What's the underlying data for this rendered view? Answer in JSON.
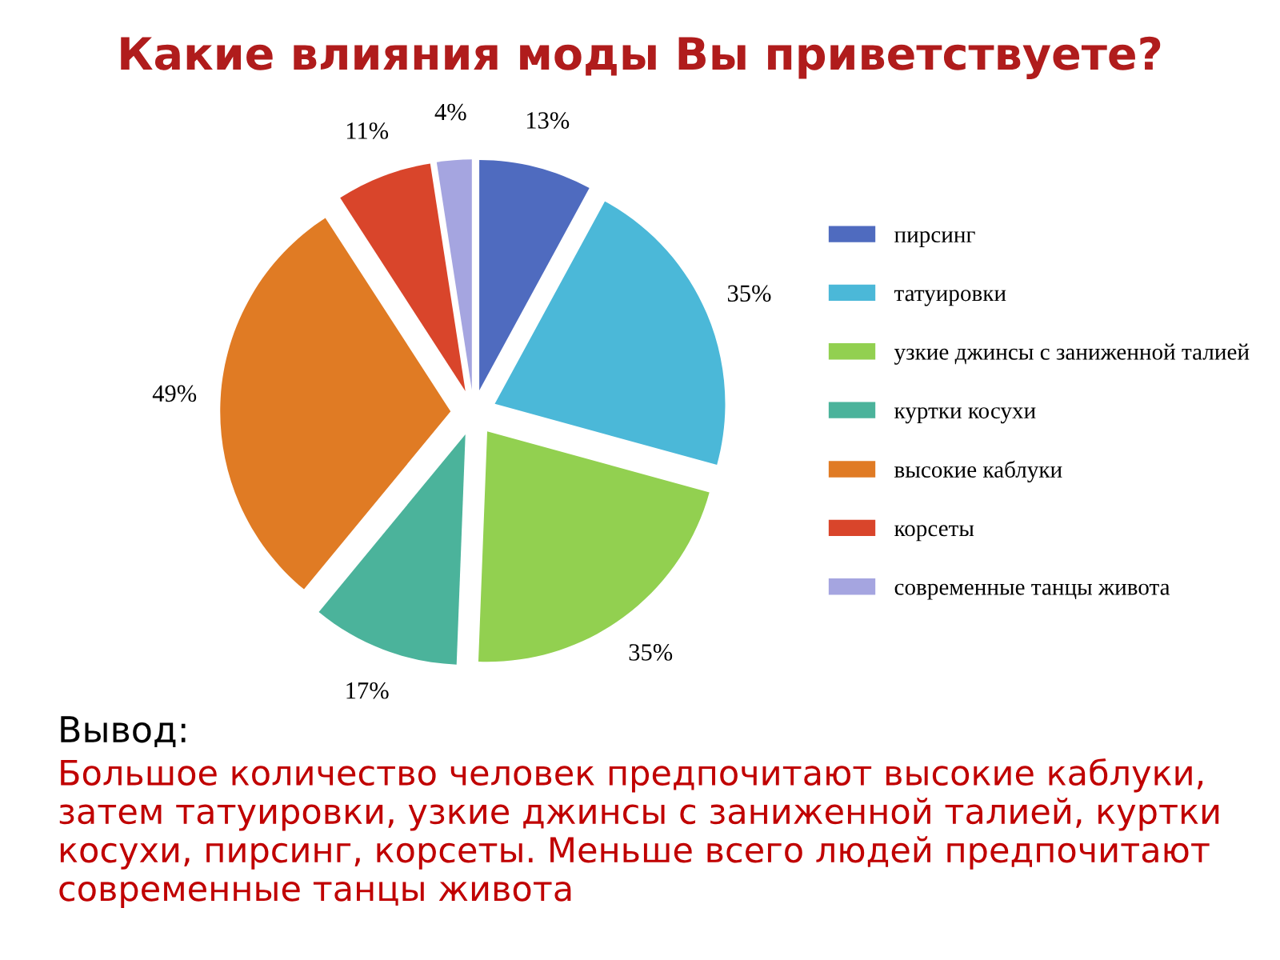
{
  "chart_data": {
    "type": "pie",
    "title": "Какие влияния моды Вы приветствуете?",
    "categories": [
      "пирсинг",
      "татуировки",
      "узкие джинсы с заниженной талией",
      "куртки косухи",
      "высокие каблуки",
      "корсеты",
      "современные танцы живота"
    ],
    "values": [
      13,
      35,
      35,
      17,
      49,
      11,
      4
    ],
    "value_labels": [
      "13%",
      "35%",
      "35%",
      "17%",
      "49%",
      "11%",
      "4%"
    ],
    "colors": [
      "#4f6bbf",
      "#4bb8d8",
      "#92d050",
      "#4bb39b",
      "#e07b24",
      "#d9452b",
      "#a5a5e0"
    ],
    "legend": "right",
    "annotations": [
      "Вывод:",
      "Большое количество человек предпочитают высокие каблуки, затем татуировки, узкие джинсы с заниженной талией, куртки косухи, пирсинг, корсеты. Меньше всего людей предпочитают современные танцы живота"
    ]
  }
}
